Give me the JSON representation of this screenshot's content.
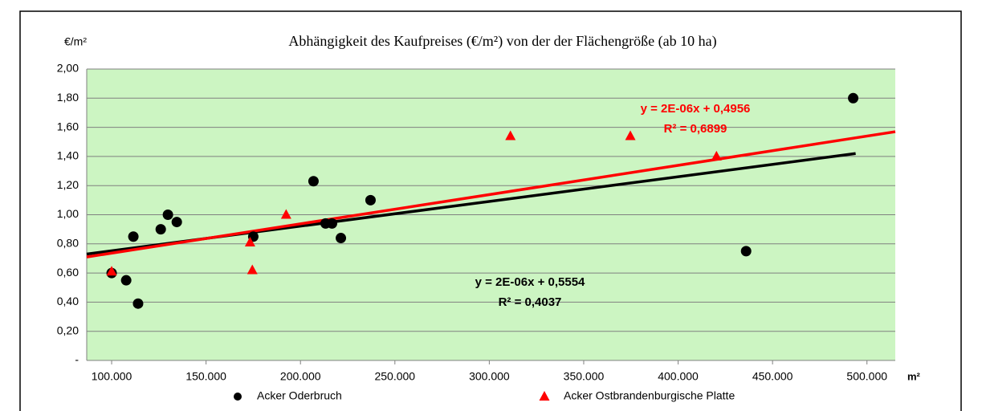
{
  "chart_data": {
    "type": "scatter",
    "title": "Abhängigkeit des Kaufpreises (€/m²) von der der Flächengröße (ab 10 ha)",
    "y_label": "€/m²",
    "x_label": "m²",
    "xlim": [
      86800,
      515000
    ],
    "ylim": [
      0,
      2
    ],
    "xticks": [
      {
        "value": 100000,
        "label": "100.000"
      },
      {
        "value": 150000,
        "label": "150.000"
      },
      {
        "value": 200000,
        "label": "200.000"
      },
      {
        "value": 250000,
        "label": "250.000"
      },
      {
        "value": 300000,
        "label": "300.000"
      },
      {
        "value": 350000,
        "label": "350.000"
      },
      {
        "value": 400000,
        "label": "400.000"
      },
      {
        "value": 450000,
        "label": "450.000"
      },
      {
        "value": 500000,
        "label": "500.000"
      }
    ],
    "yticks": [
      {
        "value": 0,
        "label": "-"
      },
      {
        "value": 0.2,
        "label": "0,20"
      },
      {
        "value": 0.4,
        "label": "0,40"
      },
      {
        "value": 0.6,
        "label": "0,60"
      },
      {
        "value": 0.8,
        "label": "0,80"
      },
      {
        "value": 1.0,
        "label": "1,00"
      },
      {
        "value": 1.2,
        "label": "1,20"
      },
      {
        "value": 1.4,
        "label": "1,40"
      },
      {
        "value": 1.6,
        "label": "1,60"
      },
      {
        "value": 1.8,
        "label": "1,80"
      },
      {
        "value": 2.0,
        "label": "2,00"
      }
    ],
    "grid": true,
    "legend": "bottom",
    "series": [
      {
        "name": "Acker Oderbruch",
        "color": "#000000",
        "marker": "circle",
        "x": [
          100000,
          107700,
          111500,
          114000,
          126000,
          129800,
          134500,
          175000,
          206900,
          213300,
          216700,
          221400,
          237100,
          436000,
          492700
        ],
        "values": [
          0.6,
          0.55,
          0.85,
          0.39,
          0.9,
          1.0,
          0.95,
          0.85,
          1.23,
          0.94,
          0.94,
          0.84,
          1.1,
          0.75,
          1.8
        ]
      },
      {
        "name": "Acker Ostbrandenburgische Platte",
        "color": "#ff0000",
        "marker": "triangle",
        "x": [
          100000,
          173300,
          174500,
          192400,
          311200,
          374700,
          420300
        ],
        "values": [
          0.61,
          0.81,
          0.62,
          1.0,
          1.54,
          1.54,
          1.4
        ]
      }
    ],
    "trendlines": [
      {
        "color": "#000000",
        "x": [
          86800,
          494000
        ],
        "values": [
          0.73,
          1.42
        ],
        "equation": "y = 2E-06x + 0,5554",
        "r2": "R² = 0,4037"
      },
      {
        "color": "#ff0000",
        "x": [
          86800,
          515000
        ],
        "values": [
          0.71,
          1.57
        ],
        "equation": "y = 2E-06x + 0,4956",
        "r2": "R² = 0,6899"
      }
    ]
  }
}
